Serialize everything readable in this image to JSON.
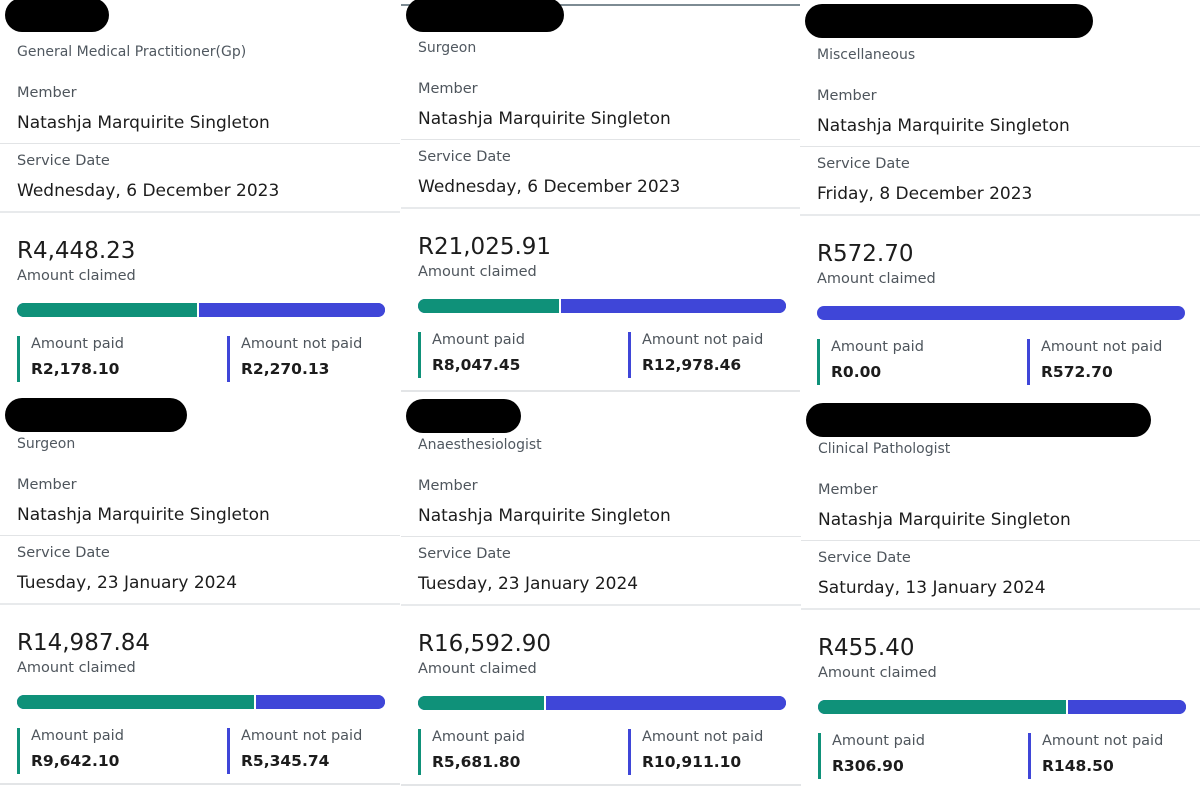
{
  "labels": {
    "member": "Member",
    "service_date": "Service Date",
    "amount_claimed": "Amount claimed",
    "amount_paid": "Amount paid",
    "amount_not_paid": "Amount not paid"
  },
  "colors": {
    "paid": "#0f9179",
    "not_paid": "#3f46d8"
  },
  "cards": [
    {
      "provider": "General Medical Practitioner(Gp)",
      "member": "Natashja Marquirite Singleton",
      "service_date": "Wednesday, 6 December 2023",
      "amount_claimed": "R4,448.23",
      "amount_paid": "R2,178.10",
      "amount_not_paid": "R2,270.13",
      "paid_fraction": 0.49
    },
    {
      "provider": "Surgeon",
      "member": "Natashja Marquirite Singleton",
      "service_date": "Wednesday, 6 December 2023",
      "amount_claimed": "R21,025.91",
      "amount_paid": "R8,047.45",
      "amount_not_paid": "R12,978.46",
      "paid_fraction": 0.383
    },
    {
      "provider": "Miscellaneous",
      "member": "Natashja Marquirite Singleton",
      "service_date": "Friday, 8 December 2023",
      "amount_claimed": "R572.70",
      "amount_paid": "R0.00",
      "amount_not_paid": "R572.70",
      "paid_fraction": 0
    },
    {
      "provider": "Surgeon",
      "member": "Natashja Marquirite Singleton",
      "service_date": "Tuesday, 23 January 2024",
      "amount_claimed": "R14,987.84",
      "amount_paid": "R9,642.10",
      "amount_not_paid": "R5,345.74",
      "paid_fraction": 0.643
    },
    {
      "provider": "Anaesthesiologist",
      "member": "Natashja Marquirite Singleton",
      "service_date": "Tuesday, 23 January 2024",
      "amount_claimed": "R16,592.90",
      "amount_paid": "R5,681.80",
      "amount_not_paid": "R10,911.10",
      "paid_fraction": 0.342
    },
    {
      "provider": "Clinical Pathologist",
      "member": "Natashja Marquirite Singleton",
      "service_date": "Saturday, 13 January 2024",
      "amount_claimed": "R455.40",
      "amount_paid": "R306.90",
      "amount_not_paid": "R148.50",
      "paid_fraction": 0.674
    }
  ]
}
